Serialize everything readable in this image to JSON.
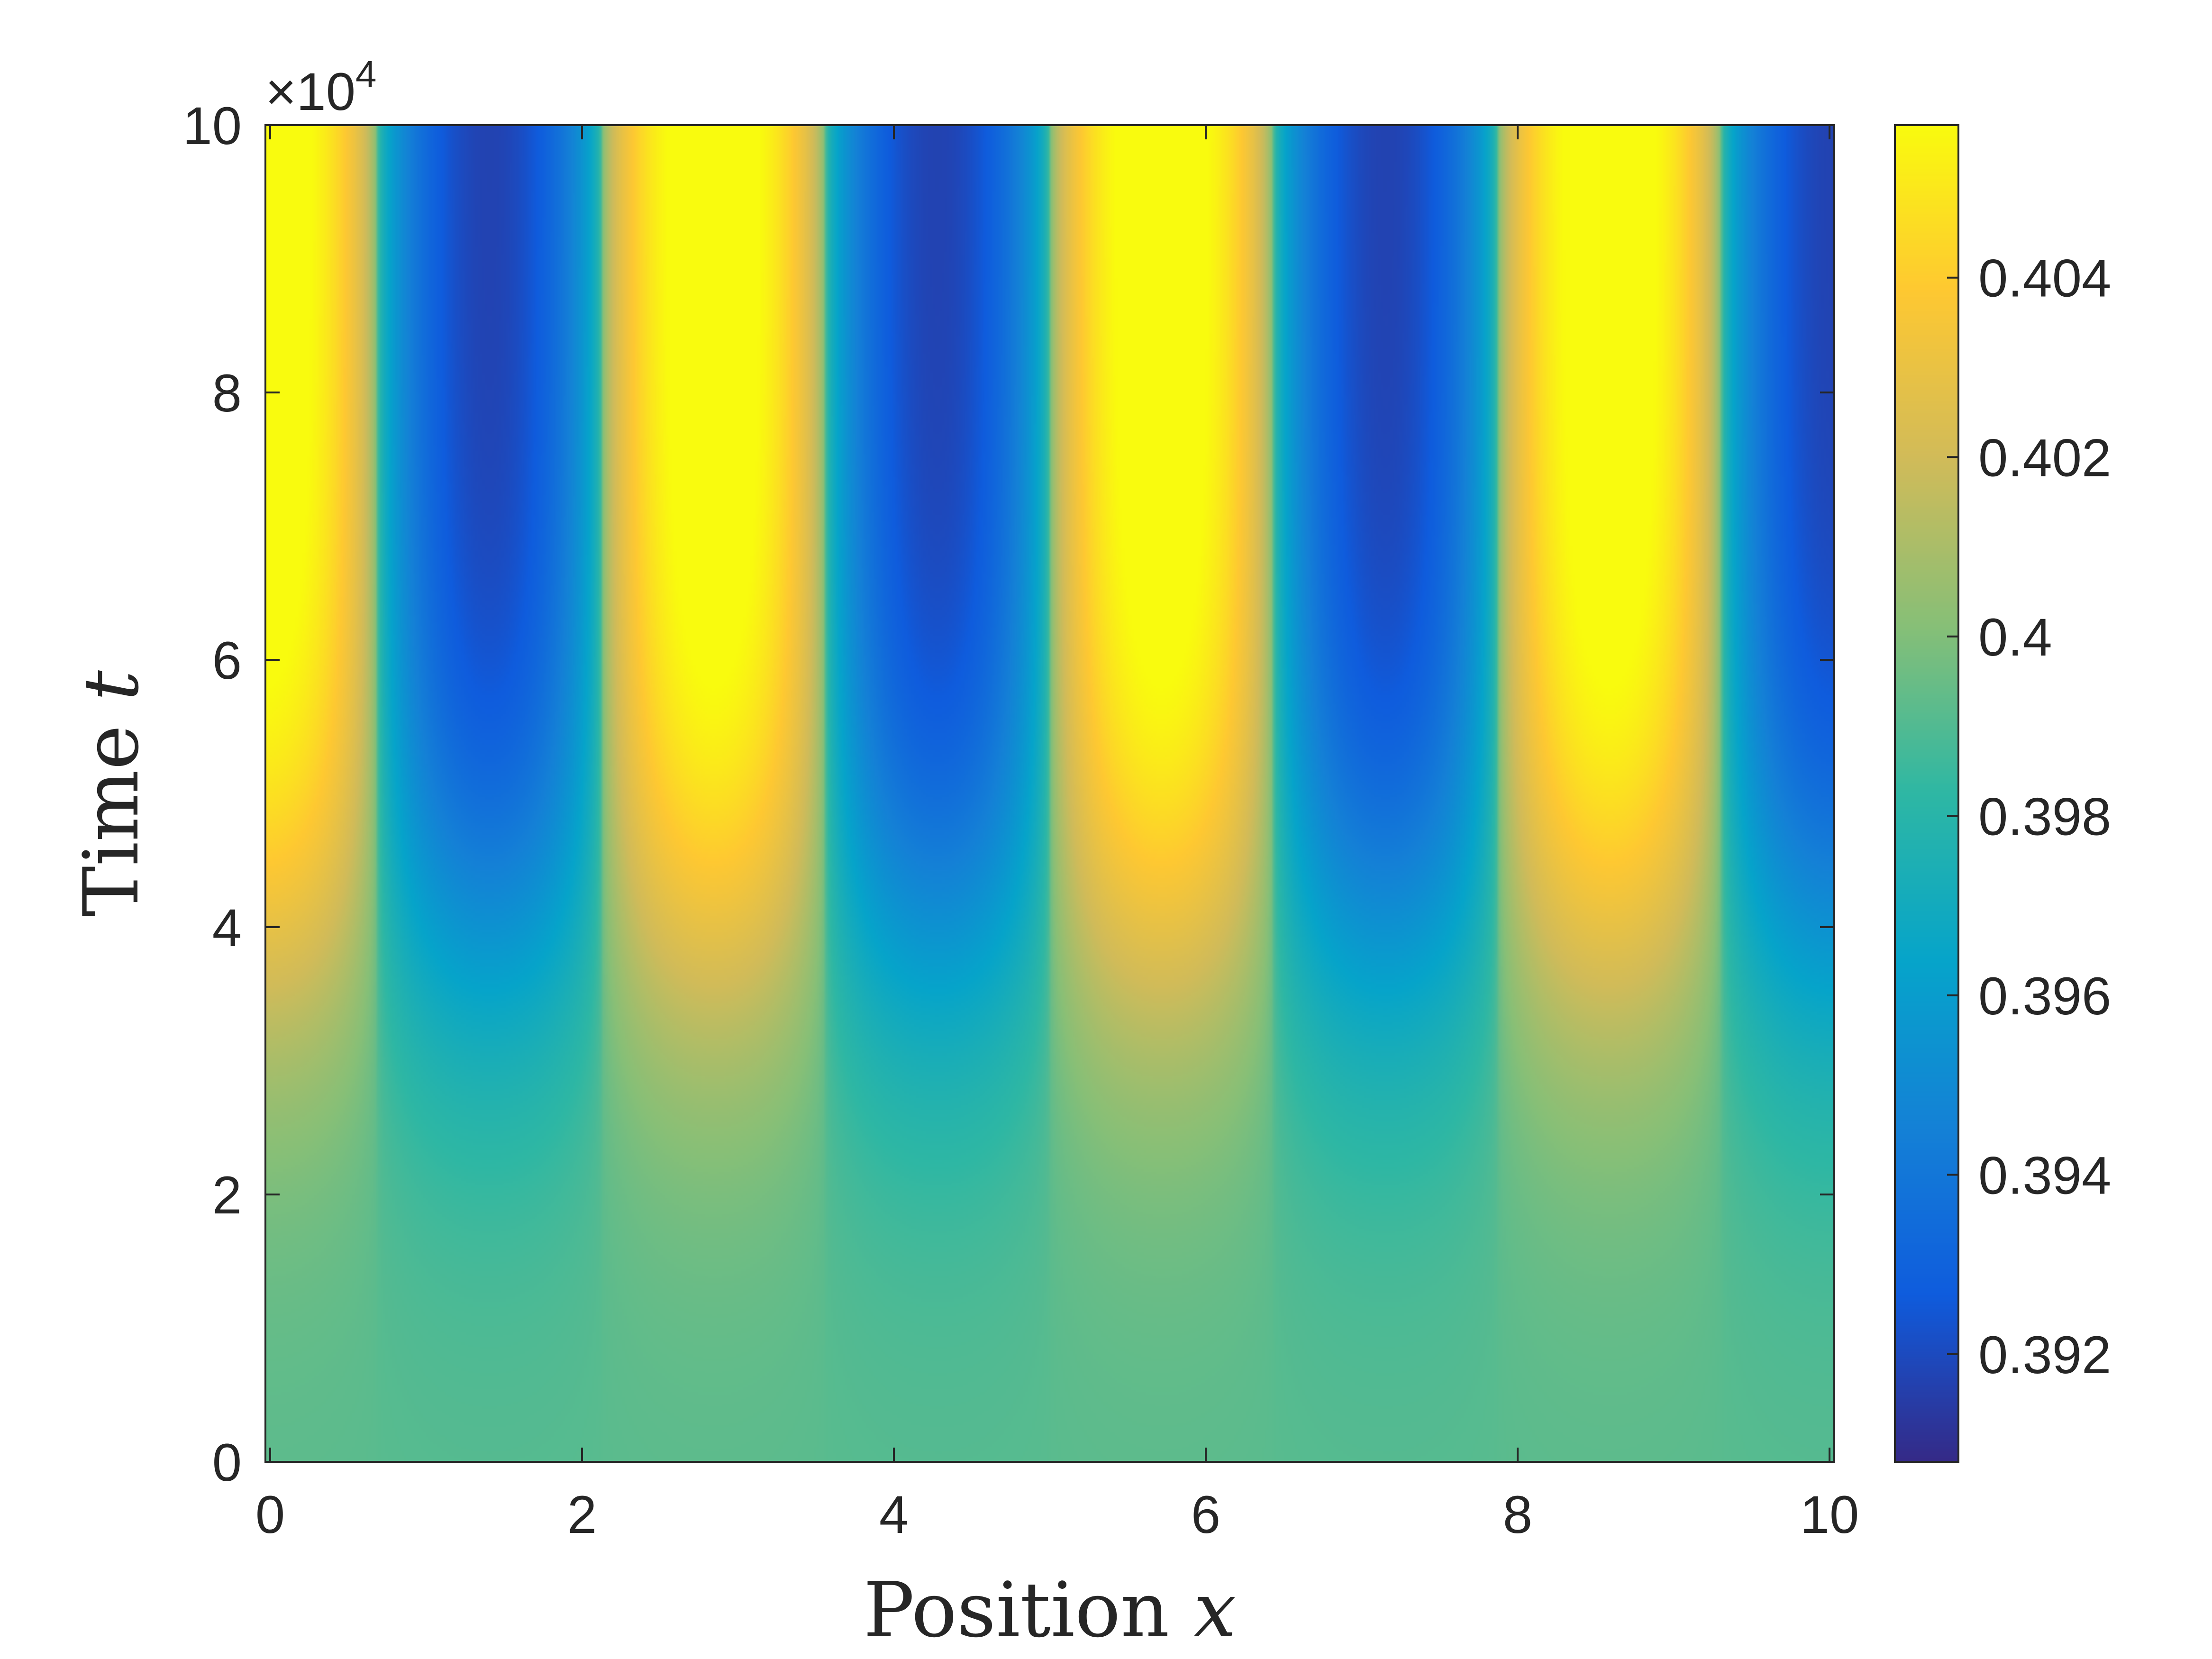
{
  "colors": {
    "axis": "#262626",
    "parula": [
      "#352a87",
      "#0f5cdd",
      "#1481d6",
      "#06a4ca",
      "#2eb7a4",
      "#87bf77",
      "#d1bb59",
      "#fec832",
      "#f9fb0e"
    ]
  },
  "chart_data": {
    "type": "heatmap",
    "title": "",
    "xlabel": "Position",
    "xlabel_var": "x",
    "ylabel": "Time",
    "ylabel_var": "t",
    "x_range": [
      0,
      10
    ],
    "y_range": [
      0,
      100000
    ],
    "xticks": [
      0,
      2,
      4,
      6,
      8,
      10
    ],
    "xtick_labels": [
      "0",
      "2",
      "4",
      "6",
      "8",
      "10"
    ],
    "yticks": [
      0,
      20000,
      40000,
      60000,
      80000,
      100000
    ],
    "ytick_labels": [
      "0",
      "2",
      "4",
      "6",
      "8",
      "10"
    ],
    "y_exponent_prefix": "×10",
    "y_exponent_power": "4",
    "colorbar": {
      "range": [
        0.3908,
        0.4057
      ],
      "ticks": [
        0.392,
        0.394,
        0.396,
        0.398,
        0.4,
        0.402,
        0.404
      ],
      "tick_labels": [
        "0.392",
        "0.394",
        "0.396",
        "0.398",
        "0.4",
        "0.402",
        "0.404"
      ]
    },
    "field": {
      "description_note": "",
      "base_value": 0.3997,
      "amplitude_final": 0.0073,
      "growth_midpoint_t": 40000,
      "growth_scale_t": 9000,
      "pattern_wavenumber": 2.2,
      "pattern_phase": 0.0
    },
    "grid": false
  }
}
